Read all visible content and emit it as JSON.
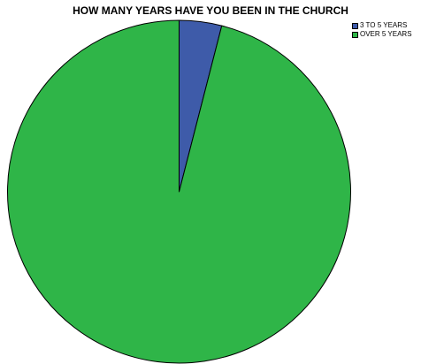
{
  "chart_data": {
    "type": "pie",
    "title": "HOW MANY YEARS HAVE YOU BEEN IN THE CHURCH",
    "slices": [
      {
        "label": "3 TO 5 YEARS",
        "value": 4.0,
        "color": "#3e5ba9"
      },
      {
        "label": "OVER 5 YEARS",
        "value": 96.0,
        "color": "#2fb548"
      }
    ],
    "start_angle_deg": 0,
    "direction": "clockwise",
    "legend_position": "top-right",
    "slice_border_color": "#000000"
  }
}
